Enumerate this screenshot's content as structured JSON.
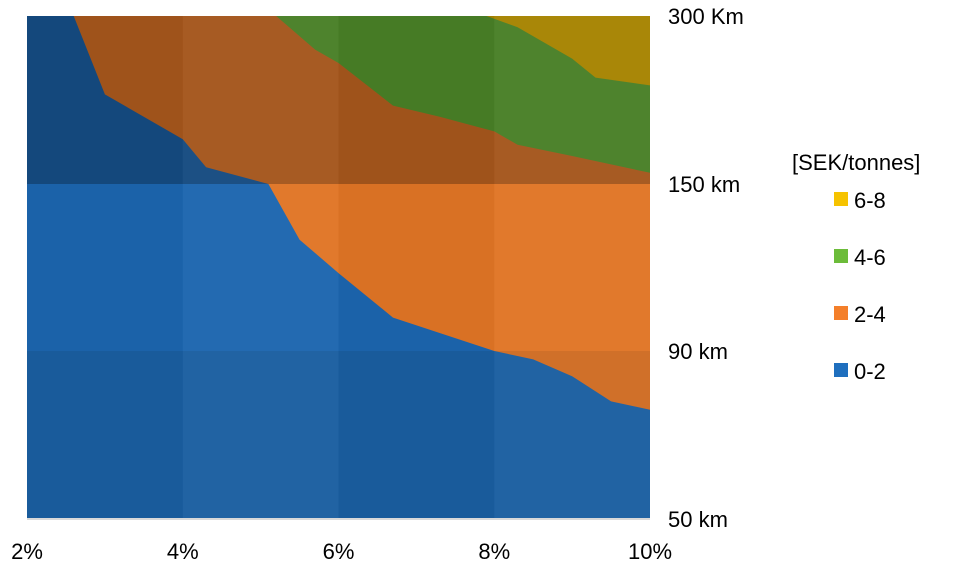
{
  "chart_data": {
    "type": "area",
    "subtype": "surface-contour",
    "x_ticks": [
      "2%",
      "4%",
      "6%",
      "8%",
      "10%"
    ],
    "x_values": [
      2,
      3,
      4,
      5,
      6,
      7,
      8,
      9,
      10
    ],
    "y_ticks": [
      "50 km",
      "90 km",
      "150 km",
      "300 Km"
    ],
    "legend": {
      "title": "[SEK/tonnes]",
      "entries": [
        {
          "label": "6-8",
          "color": "#f6c300"
        },
        {
          "label": "4-6",
          "color": "#6cbc3a"
        },
        {
          "label": "2-4",
          "color": "#f47f2a"
        },
        {
          "label": "0-2",
          "color": "#1f6fbe"
        }
      ]
    },
    "view": {
      "type": "3d-surface-top-down",
      "shade_colors": {
        "blue": "#0b4a8c",
        "orange": "#bf5a18",
        "green": "#3b7a1e",
        "yellow": "#8a6506"
      }
    },
    "boundaries": [
      {
        "between": [
          "0-2",
          "2-4"
        ],
        "points": [
          [
            2.6,
            300
          ],
          [
            3.0,
            230
          ],
          [
            4.0,
            190
          ],
          [
            4.3,
            165
          ],
          [
            5.1,
            150
          ],
          [
            5.5,
            130
          ],
          [
            6.0,
            118
          ],
          [
            6.7,
            102
          ],
          [
            8.0,
            90
          ],
          [
            8.5,
            88
          ],
          [
            9.0,
            84
          ],
          [
            9.5,
            78
          ],
          [
            10.0,
            76
          ]
        ]
      },
      {
        "between": [
          "2-4",
          "4-6"
        ],
        "points": [
          [
            5.2,
            300
          ],
          [
            5.7,
            270
          ],
          [
            6.0,
            258
          ],
          [
            6.7,
            220
          ],
          [
            7.3,
            210
          ],
          [
            8.0,
            197
          ],
          [
            8.3,
            185
          ],
          [
            9.0,
            175
          ],
          [
            10.0,
            160
          ]
        ]
      },
      {
        "between": [
          "4-6",
          "6-8"
        ],
        "points": [
          [
            7.9,
            300
          ],
          [
            8.3,
            290
          ],
          [
            9.0,
            262
          ],
          [
            9.3,
            245
          ],
          [
            10.0,
            238
          ]
        ]
      }
    ]
  }
}
